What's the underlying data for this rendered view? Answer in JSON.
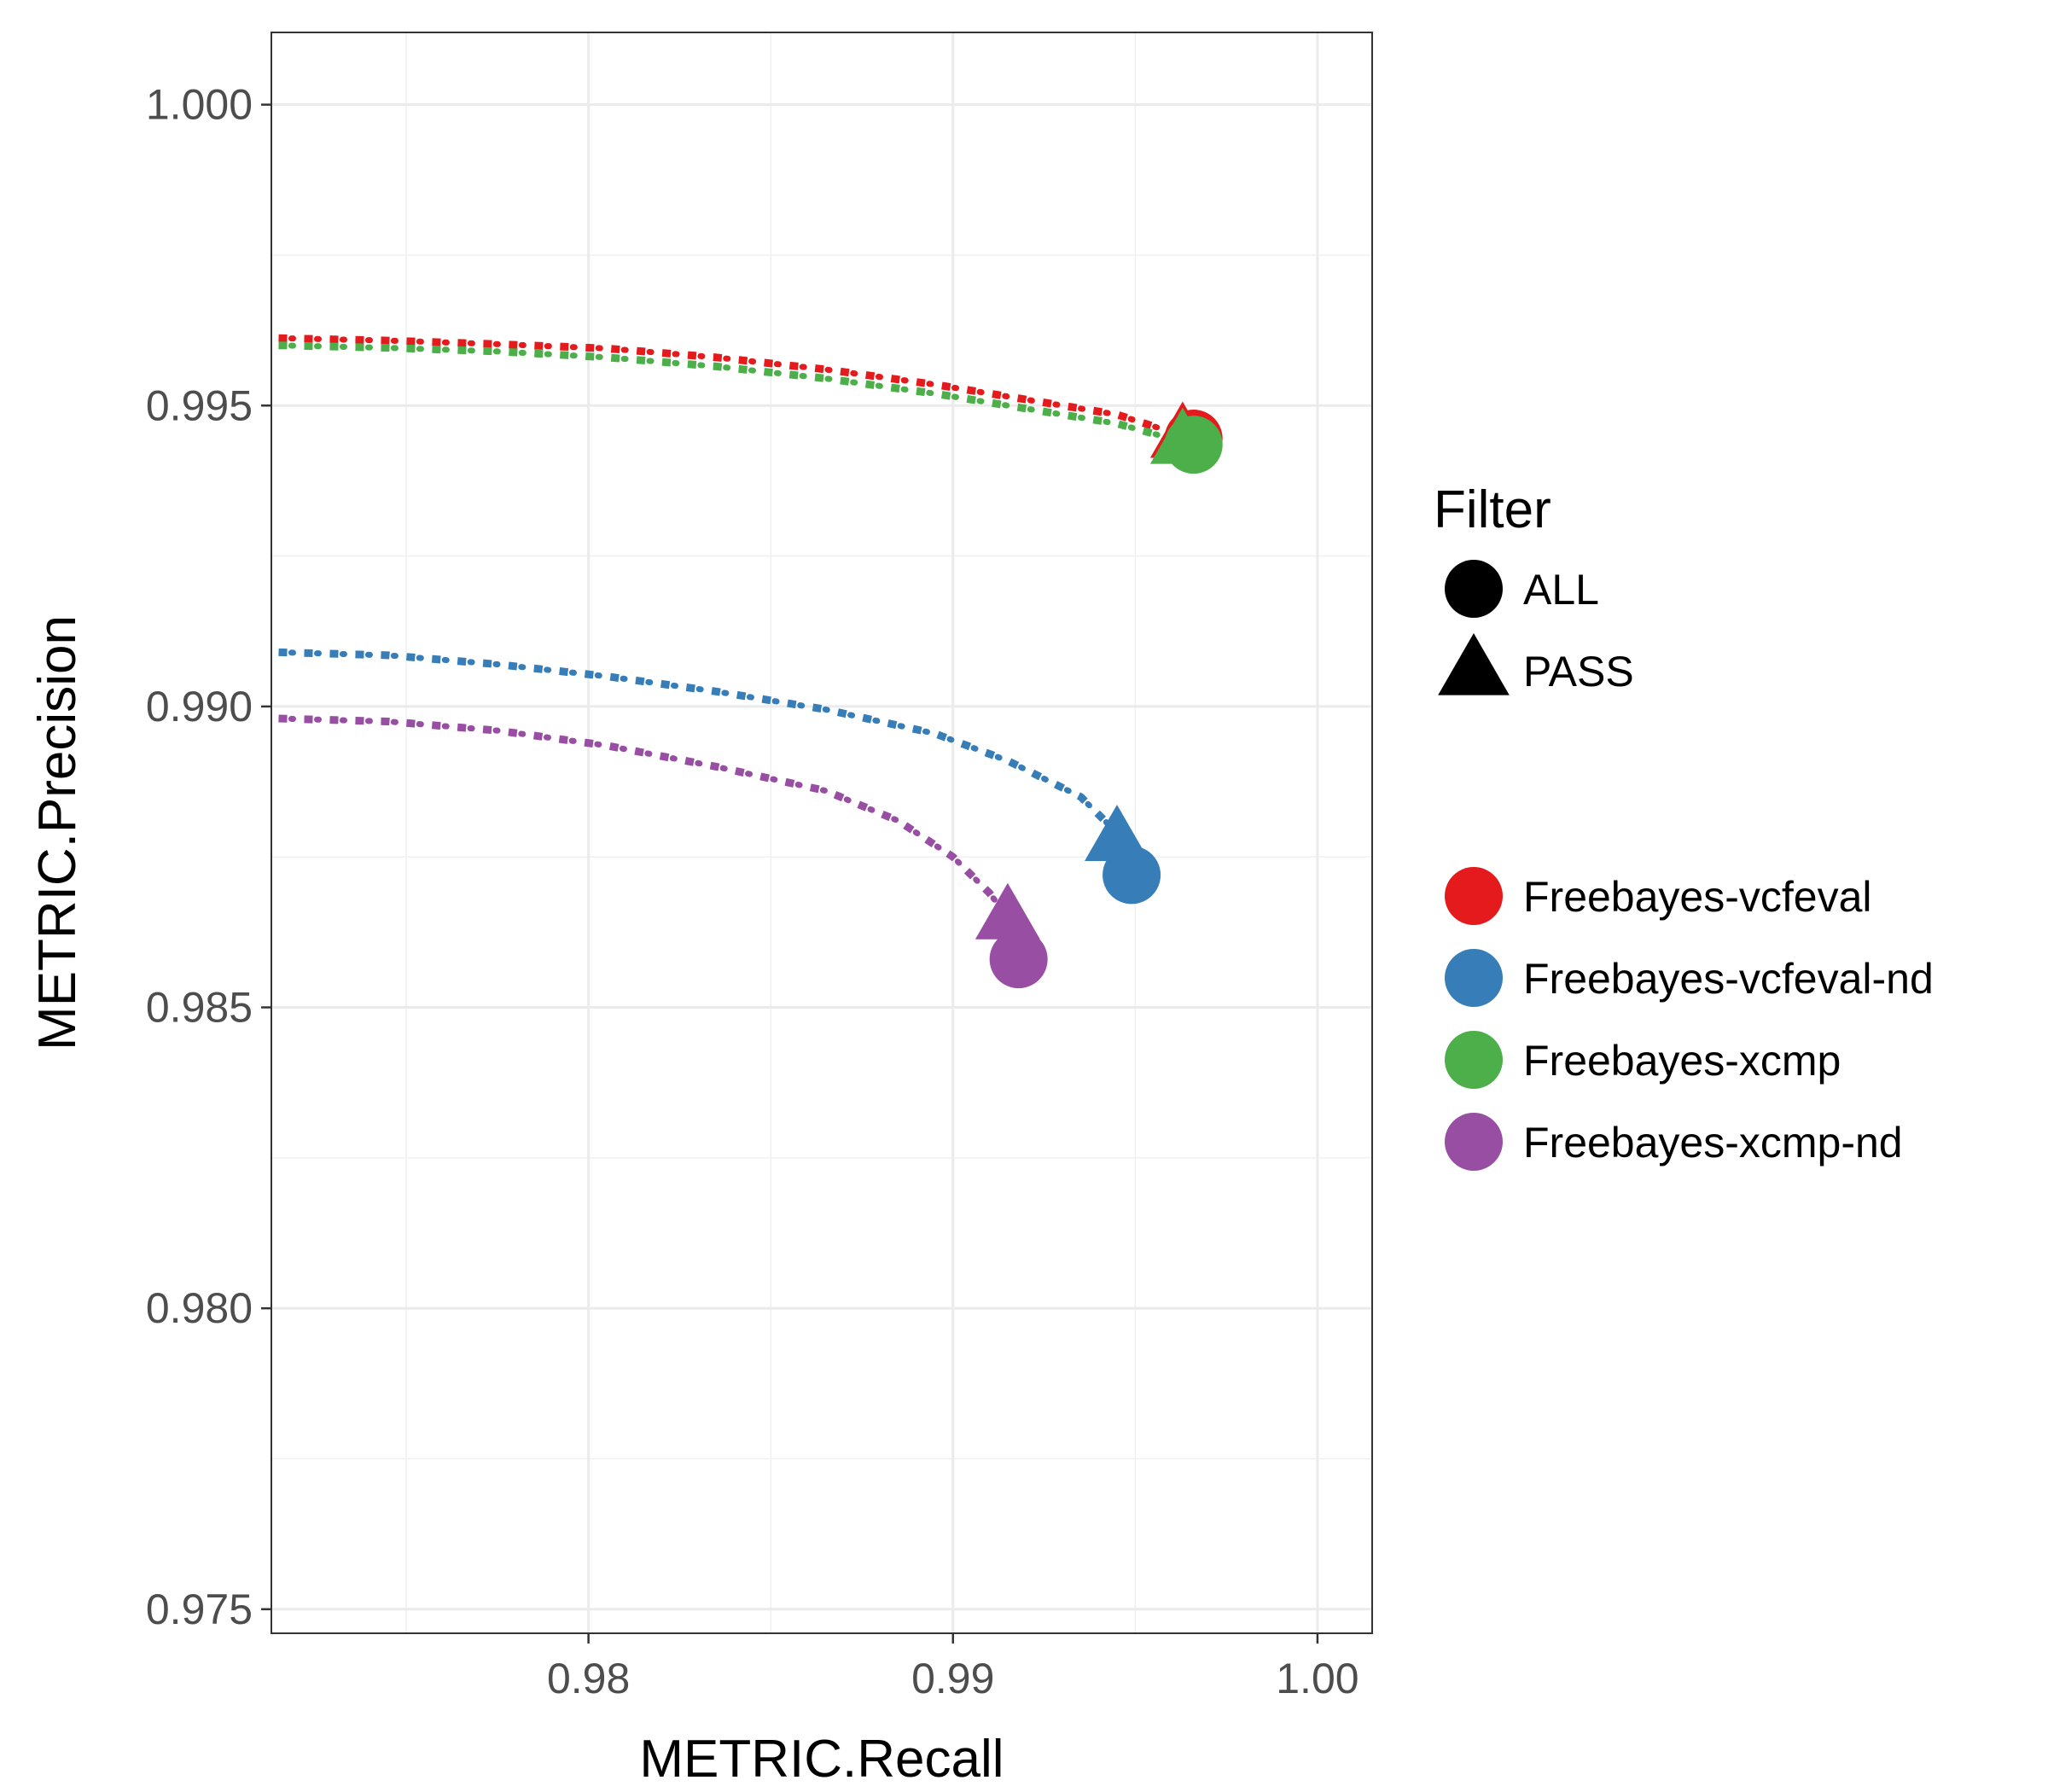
{
  "chart_data": {
    "type": "scatter",
    "xlabel": "METRIC.Recall",
    "ylabel": "METRIC.Precision",
    "xlim": [
      0.9713,
      1.0015
    ],
    "ylim": [
      0.9746,
      1.0012
    ],
    "x_ticks": [
      "0.98",
      "0.99",
      "1.00"
    ],
    "y_ticks": [
      "0.975",
      "0.980",
      "0.985",
      "0.990",
      "0.995",
      "1.000"
    ],
    "grid": true,
    "background": "#ffffff",
    "legend_shape": {
      "title": "Filter",
      "entries": [
        {
          "label": "ALL",
          "shape": "circle"
        },
        {
          "label": "PASS",
          "shape": "triangle"
        }
      ]
    },
    "series": [
      {
        "name": "Freebayes-vcfeval",
        "color": "#e41a1c",
        "curve": [
          [
            0.9715,
            0.99612
          ],
          [
            0.9745,
            0.99608
          ],
          [
            0.9775,
            0.99602
          ],
          [
            0.9805,
            0.99595
          ],
          [
            0.9835,
            0.9958
          ],
          [
            0.9865,
            0.9956
          ],
          [
            0.9895,
            0.99535
          ],
          [
            0.992,
            0.9951
          ],
          [
            0.9945,
            0.99485
          ],
          [
            0.9963,
            0.9945
          ]
        ],
        "points": [
          {
            "filter": "ALL",
            "x": 0.9966,
            "y": 0.99445
          },
          {
            "filter": "PASS",
            "x": 0.9963,
            "y": 0.9945
          }
        ]
      },
      {
        "name": "Freebayes-vcfeval-nd",
        "color": "#377eb8",
        "curve": [
          [
            0.9715,
            0.9909
          ],
          [
            0.9745,
            0.99085
          ],
          [
            0.9775,
            0.9907
          ],
          [
            0.9805,
            0.9905
          ],
          [
            0.9835,
            0.99025
          ],
          [
            0.9865,
            0.98995
          ],
          [
            0.9895,
            0.98955
          ],
          [
            0.9915,
            0.9891
          ],
          [
            0.9935,
            0.9885
          ],
          [
            0.9945,
            0.9879
          ]
        ],
        "points": [
          {
            "filter": "ALL",
            "x": 0.9949,
            "y": 0.9872
          },
          {
            "filter": "PASS",
            "x": 0.9945,
            "y": 0.9878
          }
        ]
      },
      {
        "name": "Freebayes-xcmp",
        "color": "#4daf4a",
        "curve": [
          [
            0.9715,
            0.996
          ],
          [
            0.9745,
            0.99596
          ],
          [
            0.9775,
            0.9959
          ],
          [
            0.9805,
            0.9958
          ],
          [
            0.9835,
            0.99565
          ],
          [
            0.9865,
            0.99545
          ],
          [
            0.9895,
            0.9952
          ],
          [
            0.992,
            0.99495
          ],
          [
            0.9945,
            0.9947
          ],
          [
            0.9963,
            0.9944
          ]
        ],
        "points": [
          {
            "filter": "ALL",
            "x": 0.9966,
            "y": 0.99435
          },
          {
            "filter": "PASS",
            "x": 0.9963,
            "y": 0.9944
          }
        ]
      },
      {
        "name": "Freebayes-xcmp-nd",
        "color": "#984ea3",
        "curve": [
          [
            0.9715,
            0.9898
          ],
          [
            0.9745,
            0.98975
          ],
          [
            0.9775,
            0.9896
          ],
          [
            0.9805,
            0.98935
          ],
          [
            0.9835,
            0.989
          ],
          [
            0.9865,
            0.9886
          ],
          [
            0.9885,
            0.9881
          ],
          [
            0.99,
            0.9875
          ],
          [
            0.991,
            0.9869
          ],
          [
            0.9915,
            0.9865
          ]
        ],
        "points": [
          {
            "filter": "ALL",
            "x": 0.9918,
            "y": 0.9858
          },
          {
            "filter": "PASS",
            "x": 0.9915,
            "y": 0.9865
          }
        ]
      }
    ]
  }
}
